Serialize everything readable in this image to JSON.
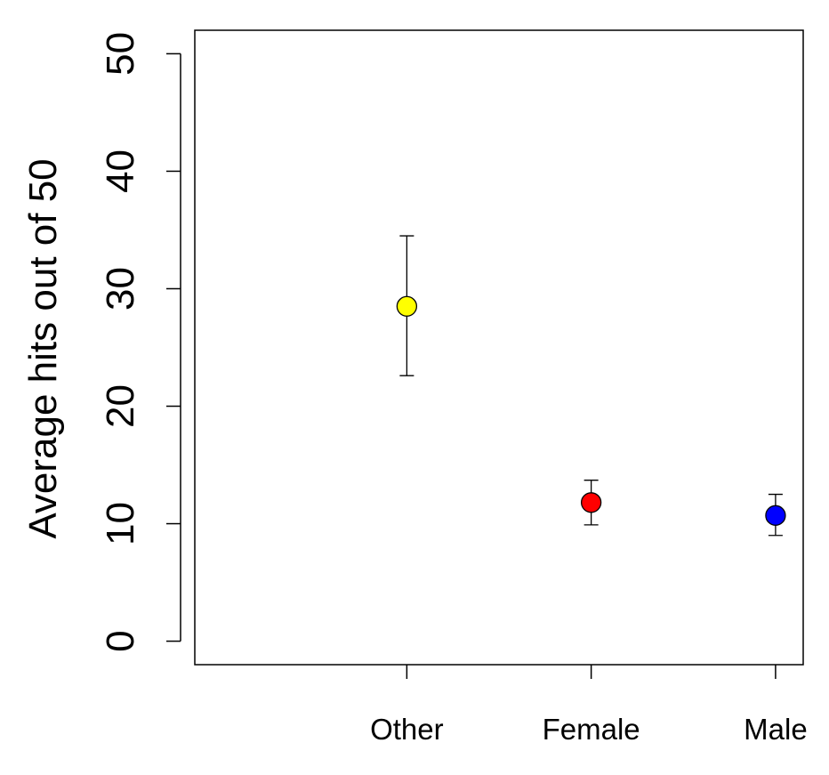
{
  "chart_data": {
    "type": "scatter",
    "title": "",
    "xlabel": "",
    "ylabel": "Average hits out of 50",
    "categories": [
      "Other",
      "Female",
      "Male"
    ],
    "series": [
      {
        "values": [
          28.5,
          11.8,
          10.7
        ],
        "error_low": [
          22.6,
          9.9,
          9.0
        ],
        "error_high": [
          34.5,
          13.7,
          12.5
        ],
        "colors": [
          "#FFFF00",
          "#FF0000",
          "#0000FF"
        ]
      }
    ],
    "ylim": [
      -2,
      52
    ],
    "yticks": [
      0,
      10,
      20,
      30,
      40,
      50
    ],
    "ytick_labels": [
      "0",
      "10",
      "20",
      "30",
      "40",
      "50"
    ],
    "xlim": [
      -0.15,
      3.15
    ],
    "grid": false,
    "legend": "none"
  }
}
